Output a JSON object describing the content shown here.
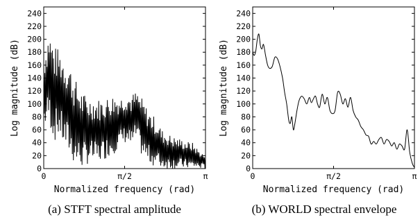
{
  "chart_data": [
    {
      "type": "line",
      "caption": "(a) STFT spectral amplitude",
      "xlabel": "Normalized frequency (rad)",
      "ylabel": "Log magnitude (dB)",
      "xlim": [
        0,
        3.14159
      ],
      "ylim": [
        0,
        250
      ],
      "yticks": [
        0,
        20,
        40,
        60,
        80,
        100,
        120,
        140,
        160,
        180,
        200,
        220,
        240
      ],
      "xticks": [
        {
          "value": 0,
          "label": "0"
        },
        {
          "value": 1.5708,
          "label": "π/2"
        },
        {
          "value": 3.14159,
          "label": "π"
        }
      ],
      "grid": false,
      "envelope_upper": {
        "x": [
          0,
          0.05,
          0.1,
          0.15,
          0.2,
          0.3,
          0.4,
          0.5,
          0.55,
          0.6,
          0.75,
          0.85,
          0.95,
          1.05,
          1.2,
          1.35,
          1.5,
          1.6,
          1.7,
          1.8,
          1.9,
          2.0,
          2.1,
          2.2,
          2.3,
          2.4,
          2.5,
          2.6,
          2.7,
          2.8,
          2.9,
          3.0,
          3.14
        ],
        "y": [
          180,
          195,
          218,
          205,
          190,
          185,
          175,
          165,
          150,
          140,
          120,
          110,
          112,
          108,
          110,
          115,
          112,
          118,
          115,
          120,
          110,
          95,
          85,
          75,
          60,
          55,
          50,
          48,
          45,
          42,
          40,
          30,
          20
        ]
      },
      "envelope_lower": {
        "x": [
          0,
          0.1,
          0.2,
          0.3,
          0.4,
          0.5,
          0.6,
          0.75,
          0.9,
          1.0,
          1.2,
          1.4,
          1.5,
          1.6,
          1.7,
          1.8,
          1.9,
          2.0,
          2.1,
          2.3,
          2.5,
          2.7,
          2.9,
          3.1,
          3.14
        ],
        "y": [
          60,
          70,
          40,
          50,
          30,
          20,
          5,
          0,
          10,
          5,
          15,
          25,
          35,
          40,
          30,
          45,
          20,
          10,
          5,
          0,
          0,
          0,
          0,
          0,
          0
        ]
      }
    },
    {
      "type": "line",
      "caption": "(b) WORLD spectral envelope",
      "xlabel": "Normalized frequency (rad)",
      "ylabel": "Log magnitude (dB)",
      "xlim": [
        0,
        3.14159
      ],
      "ylim": [
        0,
        250
      ],
      "yticks": [
        0,
        20,
        40,
        60,
        80,
        100,
        120,
        140,
        160,
        180,
        200,
        220,
        240
      ],
      "xticks": [
        {
          "value": 0,
          "label": "0"
        },
        {
          "value": 1.5708,
          "label": "π/2"
        },
        {
          "value": 3.14159,
          "label": "π"
        }
      ],
      "grid": false,
      "series": [
        {
          "x": [
            0,
            0.03,
            0.06,
            0.09,
            0.12,
            0.15,
            0.18,
            0.21,
            0.25,
            0.29,
            0.33,
            0.38,
            0.43,
            0.48,
            0.53,
            0.58,
            0.62,
            0.66,
            0.7,
            0.73,
            0.76,
            0.79,
            0.82,
            0.86,
            0.9,
            0.95,
            1.0,
            1.05,
            1.1,
            1.14,
            1.18,
            1.22,
            1.26,
            1.3,
            1.35,
            1.4,
            1.45,
            1.5,
            1.55,
            1.6,
            1.65,
            1.7,
            1.75,
            1.8,
            1.85,
            1.9,
            1.95,
            2.0,
            2.05,
            2.1,
            2.15,
            2.2,
            2.25,
            2.3,
            2.35,
            2.4,
            2.45,
            2.5,
            2.55,
            2.6,
            2.65,
            2.7,
            2.75,
            2.8,
            2.85,
            2.9,
            2.95,
            3.0,
            3.05,
            3.1,
            3.14
          ],
          "y": [
            180,
            175,
            182,
            200,
            208,
            190,
            185,
            192,
            175,
            160,
            155,
            158,
            172,
            170,
            158,
            140,
            118,
            100,
            75,
            70,
            80,
            60,
            70,
            90,
            105,
            112,
            108,
            100,
            110,
            102,
            108,
            112,
            100,
            95,
            115,
            100,
            110,
            90,
            85,
            90,
            118,
            115,
            100,
            108,
            95,
            110,
            90,
            80,
            75,
            65,
            60,
            52,
            50,
            38,
            42,
            38,
            45,
            48,
            38,
            45,
            42,
            35,
            40,
            30,
            38,
            35,
            30,
            60,
            25,
            8,
            2
          ]
        }
      ]
    }
  ]
}
